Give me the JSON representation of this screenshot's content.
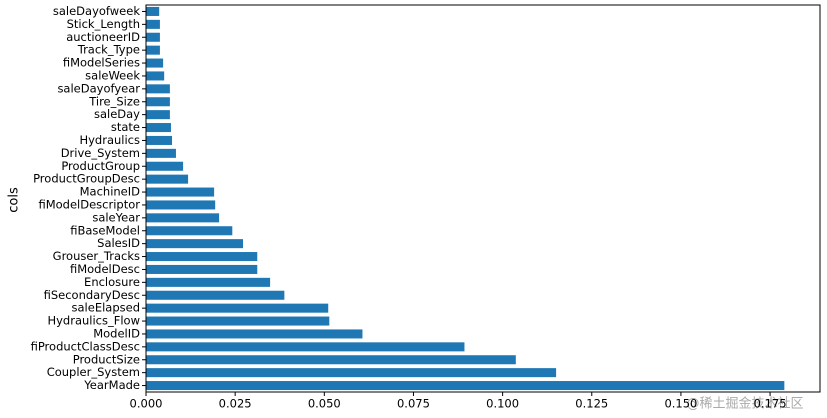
{
  "chart_data": {
    "type": "barh",
    "ylabel": "cols",
    "categories": [
      "saleDayofweek",
      "Stick_Length",
      "auctioneerID",
      "Track_Type",
      "fiModelSeries",
      "saleWeek",
      "saleDayofyear",
      "Tire_Size",
      "saleDay",
      "state",
      "Hydraulics",
      "Drive_System",
      "ProductGroup",
      "ProductGroupDesc",
      "MachineID",
      "fiModelDescriptor",
      "saleYear",
      "fiBaseModel",
      "SalesID",
      "Grouser_Tracks",
      "fiModelDesc",
      "Enclosure",
      "fiSecondaryDesc",
      "saleElapsed",
      "Hydraulics_Flow",
      "ModelID",
      "fiProductClassDesc",
      "ProductSize",
      "Coupler_System",
      "YearMade"
    ],
    "values": [
      0.0037,
      0.0039,
      0.0039,
      0.0039,
      0.0048,
      0.0051,
      0.0067,
      0.0067,
      0.0067,
      0.007,
      0.0073,
      0.0084,
      0.0104,
      0.0118,
      0.0191,
      0.0194,
      0.0205,
      0.0242,
      0.0272,
      0.0312,
      0.0312,
      0.0348,
      0.0388,
      0.0511,
      0.0514,
      0.0607,
      0.0893,
      0.1037,
      0.115,
      0.179
    ],
    "color": "#1f77b4",
    "xlim": [
      0,
      0.189
    ],
    "xticks": [
      {
        "value": 0,
        "label": "0.000"
      },
      0.025,
      {
        "value": 0.05,
        "label": "0.050"
      },
      0.075,
      {
        "value": 0.1,
        "label": "0.100"
      },
      0.125,
      {
        "value": 0.15,
        "label": "0.150"
      },
      0.175
    ],
    "watermark": "@稀土掘金技术社区"
  }
}
